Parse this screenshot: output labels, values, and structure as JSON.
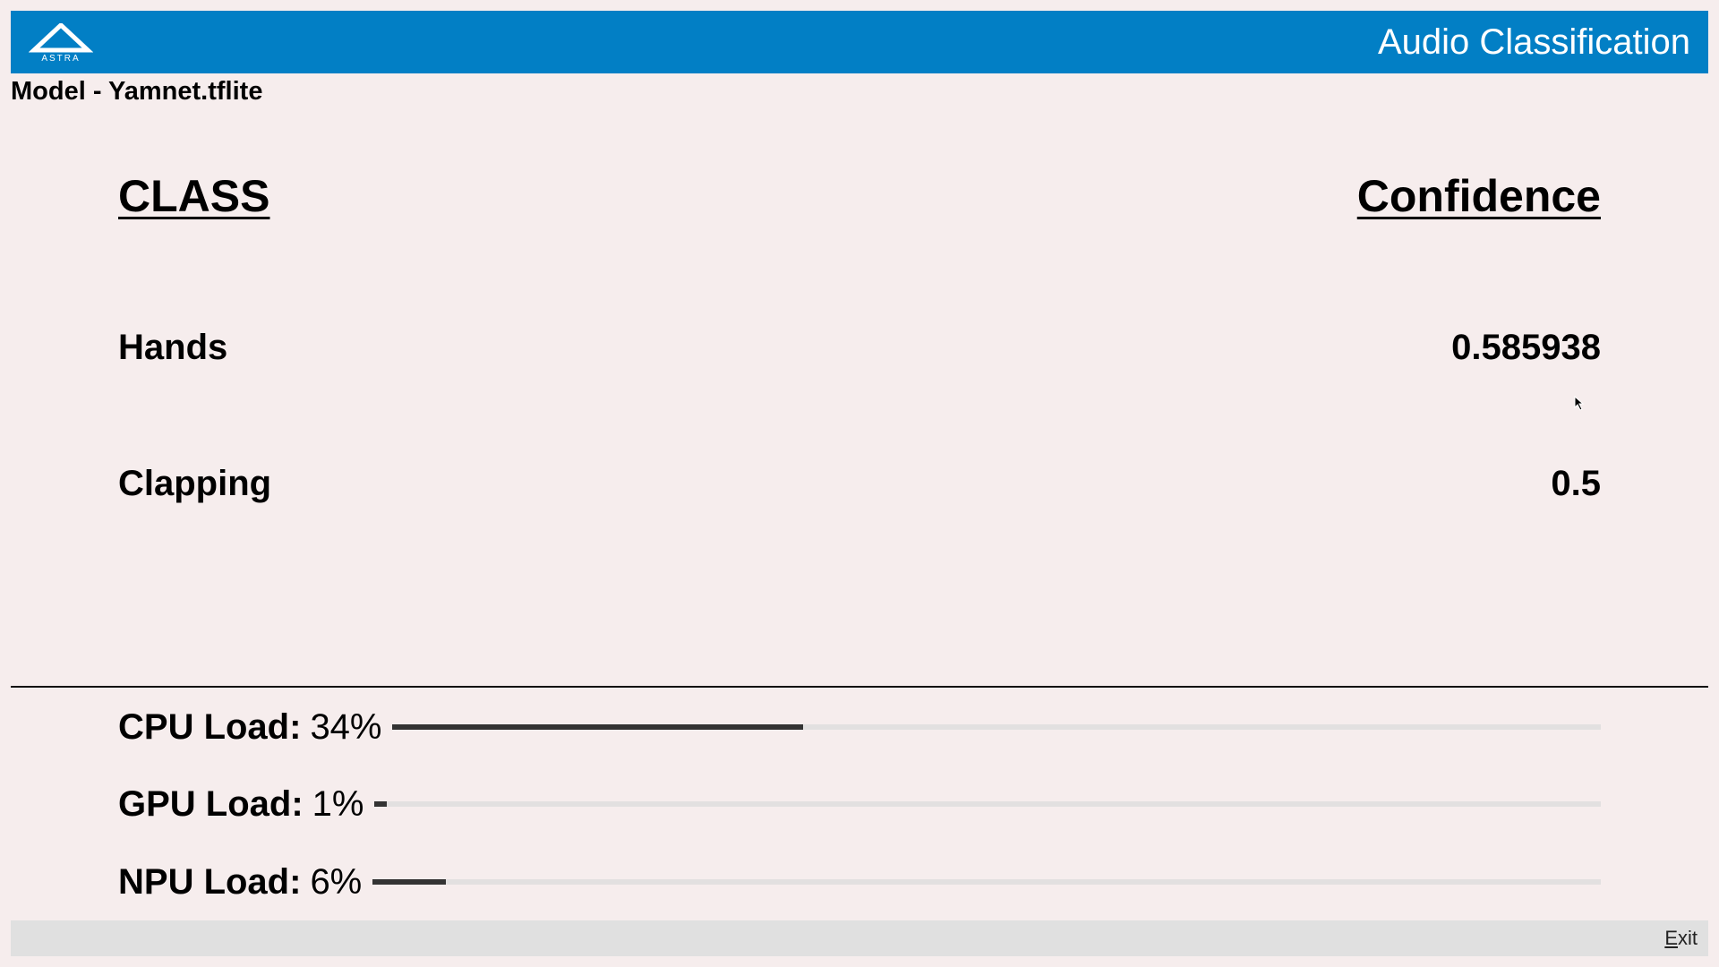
{
  "header": {
    "logo_text": "ASTRA",
    "title": "Audio Classification",
    "color": "#027fc5"
  },
  "model_label": "Model - Yamnet.tflite",
  "table": {
    "headers": {
      "class": "CLASS",
      "confidence": "Confidence"
    },
    "rows": [
      {
        "class": "Hands",
        "confidence": "0.585938"
      },
      {
        "class": "Clapping",
        "confidence": "0.5"
      }
    ]
  },
  "loads": [
    {
      "label": "CPU Load:",
      "value": "34%",
      "percent": 34
    },
    {
      "label": "GPU Load:",
      "value": "1%",
      "percent": 1
    },
    {
      "label": "NPU Load:",
      "value": "6%",
      "percent": 6
    }
  ],
  "footer": {
    "exit_label": "Exit"
  }
}
